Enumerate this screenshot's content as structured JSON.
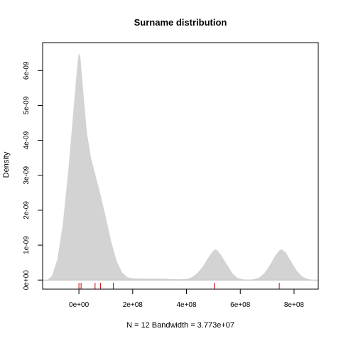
{
  "chart_data": {
    "type": "area",
    "title": "Surname distribution",
    "xlabel": "N = 12   Bandwidth = 3.773e+07",
    "ylabel": "Density",
    "xlim": [
      -135000000,
      890000000
    ],
    "ylim": [
      -2.6e-10,
      6.8e-09
    ],
    "x_ticks": [
      {
        "value": 0,
        "label": "0e+00"
      },
      {
        "value": 200000000,
        "label": "2e+08"
      },
      {
        "value": 400000000,
        "label": "4e+08"
      },
      {
        "value": 600000000,
        "label": "6e+08"
      },
      {
        "value": 800000000,
        "label": "8e+08"
      }
    ],
    "y_ticks": [
      {
        "value": 0,
        "label": "0e+00"
      },
      {
        "value": 1e-09,
        "label": "1e-09"
      },
      {
        "value": 2e-09,
        "label": "2e-09"
      },
      {
        "value": 3e-09,
        "label": "3e-09"
      },
      {
        "value": 4e-09,
        "label": "4e-09"
      },
      {
        "value": 5e-09,
        "label": "5e-09"
      },
      {
        "value": 6e-09,
        "label": "6e-09"
      }
    ],
    "series": [
      {
        "fill": "#d3d3d3",
        "x": [
          -115000000,
          -100000000,
          -80000000,
          -60000000,
          -40000000,
          -20000000,
          -5000000,
          0,
          5000000,
          15000000,
          30000000,
          45000000,
          60000000,
          80000000,
          100000000,
          120000000,
          140000000,
          160000000,
          180000000,
          200000000,
          240000000,
          300000000,
          340000000,
          370000000,
          400000000,
          420000000,
          440000000,
          460000000,
          480000000,
          495000000,
          505000000,
          515000000,
          530000000,
          550000000,
          570000000,
          590000000,
          610000000,
          630000000,
          650000000,
          670000000,
          690000000,
          710000000,
          730000000,
          745000000,
          755000000,
          770000000,
          790000000,
          810000000,
          830000000,
          850000000,
          865000000
        ],
        "y": [
          2e-11,
          1.2e-10,
          6e-10,
          1.6e-09,
          3.1e-09,
          4.9e-09,
          6.25e-09,
          6.5e-09,
          6.4e-09,
          5.5e-09,
          4.2e-09,
          3.5e-09,
          3.05e-09,
          2.45e-09,
          1.8e-09,
          1.1e-09,
          5.5e-10,
          2.2e-10,
          8e-11,
          5e-11,
          4e-11,
          4e-11,
          3e-11,
          2e-11,
          3e-11,
          8e-11,
          2e-10,
          3.8e-10,
          6.3e-10,
          8e-10,
          8.8e-10,
          8.5e-10,
          7e-10,
          4.5e-10,
          2e-10,
          6e-11,
          2e-11,
          1e-11,
          2e-11,
          7e-11,
          2e-10,
          4.3e-10,
          7e-10,
          8.5e-10,
          8.8e-10,
          7.8e-10,
          5.2e-10,
          2.7e-10,
          1e-10,
          3e-11,
          1e-11
        ]
      }
    ],
    "rug": [
      0,
      8000000,
      60000000,
      80000000,
      128000000,
      503000000,
      745000000
    ],
    "rug_color": "#cc0000",
    "zero_line_color": "#bebebe",
    "grid": false,
    "legend": "none"
  }
}
